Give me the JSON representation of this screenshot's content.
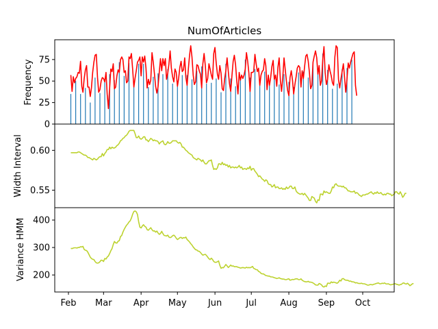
{
  "chart_data": [
    {
      "type": "bar+line",
      "title": "NumOfArticles",
      "ylabel": "Frequency",
      "ylim": [
        0,
        98
      ],
      "yticks": [
        0,
        25,
        50,
        75
      ],
      "colors": {
        "bars": "#1f77b4",
        "line": "#ff0000"
      },
      "x_start": "2016-02-03",
      "series": [
        {
          "kind": "bar",
          "values": [
            35,
            48,
            39,
            52,
            50,
            51,
            60,
            44,
            35,
            41,
            53,
            61,
            42,
            47,
            32,
            37,
            25,
            53,
            73,
            78,
            54,
            46,
            38,
            44,
            36,
            36,
            42,
            46,
            50,
            28,
            17,
            36,
            58,
            58,
            37,
            34,
            51,
            60,
            34,
            55,
            72,
            75,
            78,
            54,
            56,
            44,
            35,
            69,
            71,
            79,
            56,
            40,
            45,
            54,
            64,
            66,
            70,
            51,
            75,
            61,
            70,
            57,
            36,
            47,
            43,
            46,
            72,
            67,
            55,
            39,
            33,
            38,
            59,
            68,
            55,
            60,
            58,
            70,
            49,
            54,
            64,
            78,
            60,
            52,
            47,
            60,
            54,
            40,
            50,
            62,
            67,
            56,
            57,
            70,
            49,
            41,
            57,
            73,
            80,
            71,
            52,
            41,
            45,
            63,
            62,
            55,
            53,
            38,
            67,
            75,
            61,
            42,
            47,
            63,
            57,
            51,
            48,
            74,
            79,
            65,
            53,
            48,
            65,
            54,
            37,
            35,
            49,
            57,
            70,
            56,
            43,
            34,
            53,
            67,
            73,
            63,
            44,
            32,
            55,
            47,
            52,
            48,
            52,
            58,
            75,
            67,
            54,
            35,
            54,
            54,
            55,
            74,
            64,
            56,
            58,
            41,
            52,
            55,
            57,
            70,
            61,
            36,
            52,
            40,
            49,
            61,
            68,
            48,
            52,
            40,
            60,
            70,
            46,
            34,
            49,
            70,
            58,
            45,
            35,
            30,
            49,
            57,
            46,
            31,
            43,
            50,
            59,
            62,
            60,
            39,
            56,
            48,
            61,
            73,
            74,
            67,
            54,
            37,
            41,
            66,
            71,
            78,
            71,
            53,
            62,
            41,
            45,
            67,
            82,
            55,
            42,
            47,
            63,
            56,
            51,
            44,
            41,
            71,
            84,
            81,
            47,
            38,
            47,
            56,
            64,
            49,
            34,
            48,
            65,
            59,
            66,
            70,
            75,
            77,
            41,
            32
          ]
        },
        {
          "kind": "line",
          "values": [
            57,
            38,
            55,
            48,
            53,
            55,
            60,
            59,
            73,
            44,
            37,
            53,
            63,
            68,
            43,
            43,
            32,
            42,
            60,
            72,
            80,
            81,
            54,
            37,
            40,
            50,
            54,
            53,
            49,
            60,
            35,
            18,
            42,
            64,
            61,
            70,
            41,
            43,
            56,
            63,
            60,
            75,
            78,
            75,
            60,
            62,
            48,
            50,
            78,
            76,
            82,
            64,
            43,
            53,
            62,
            72,
            74,
            78,
            56,
            78,
            72,
            79,
            65,
            42,
            52,
            46,
            51,
            83,
            72,
            59,
            44,
            36,
            43,
            60,
            76,
            62,
            76,
            68,
            76,
            52,
            59,
            70,
            85,
            65,
            55,
            49,
            64,
            60,
            44,
            53,
            66,
            73,
            61,
            63,
            77,
            54,
            45,
            64,
            80,
            91,
            78,
            57,
            46,
            49,
            69,
            68,
            62,
            58,
            42,
            70,
            82,
            68,
            48,
            53,
            70,
            64,
            57,
            52,
            82,
            89,
            71,
            58,
            52,
            68,
            59,
            41,
            39,
            53,
            62,
            77,
            61,
            47,
            38,
            56,
            73,
            80,
            69,
            50,
            35,
            60,
            51,
            57,
            53,
            57,
            64,
            83,
            73,
            59,
            38,
            60,
            60,
            61,
            81,
            70,
            61,
            65,
            45,
            57,
            61,
            63,
            76,
            68,
            40,
            57,
            45,
            54,
            67,
            74,
            52,
            57,
            44,
            66,
            77,
            51,
            38,
            54,
            77,
            64,
            50,
            39,
            33,
            54,
            62,
            51,
            35,
            46,
            55,
            65,
            68,
            66,
            43,
            62,
            53,
            67,
            79,
            81,
            73,
            60,
            41,
            45,
            72,
            79,
            85,
            77,
            58,
            68,
            45,
            50,
            75,
            90,
            60,
            46,
            52,
            69,
            62,
            56,
            48,
            45,
            78,
            91,
            89,
            52,
            42,
            52,
            61,
            70,
            54,
            37,
            52,
            71,
            65,
            72,
            77,
            82,
            84,
            45,
            33
          ]
        }
      ]
    },
    {
      "type": "line",
      "title": "",
      "ylabel": "Width Interval",
      "ylim": [
        0.528,
        0.633
      ],
      "yticks": [
        0.55,
        0.6
      ],
      "ytick_labels": [
        "0.55",
        "0.60"
      ],
      "colors": {
        "line": "#bcd22e"
      },
      "x_start": "2016-02-03",
      "values": [
        0.597,
        0.597,
        0.597,
        0.597,
        0.597,
        0.597,
        0.598,
        0.598,
        0.597,
        0.596,
        0.595,
        0.594,
        0.594,
        0.593,
        0.591,
        0.591,
        0.59,
        0.589,
        0.588,
        0.59,
        0.589,
        0.588,
        0.589,
        0.591,
        0.592,
        0.592,
        0.596,
        0.593,
        0.596,
        0.598,
        0.601,
        0.601,
        0.604,
        0.602,
        0.604,
        0.603,
        0.603,
        0.604,
        0.606,
        0.607,
        0.609,
        0.612,
        0.613,
        0.615,
        0.616,
        0.618,
        0.619,
        0.621,
        0.624,
        0.625,
        0.625,
        0.625,
        0.625,
        0.621,
        0.616,
        0.616,
        0.618,
        0.615,
        0.614,
        0.615,
        0.617,
        0.617,
        0.613,
        0.613,
        0.611,
        0.613,
        0.615,
        0.614,
        0.612,
        0.613,
        0.612,
        0.612,
        0.611,
        0.608,
        0.61,
        0.611,
        0.612,
        0.608,
        0.607,
        0.608,
        0.611,
        0.609,
        0.609,
        0.61,
        0.612,
        0.612,
        0.612,
        0.612,
        0.61,
        0.609,
        0.61,
        0.608,
        0.604,
        0.604,
        0.602,
        0.6,
        0.599,
        0.597,
        0.596,
        0.595,
        0.594,
        0.591,
        0.59,
        0.589,
        0.588,
        0.59,
        0.589,
        0.588,
        0.586,
        0.588,
        0.585,
        0.583,
        0.583,
        0.585,
        0.587,
        0.587,
        0.588,
        0.581,
        0.576,
        0.577,
        0.576,
        0.578,
        0.583,
        0.583,
        0.582,
        0.585,
        0.582,
        0.583,
        0.581,
        0.582,
        0.579,
        0.581,
        0.578,
        0.579,
        0.579,
        0.578,
        0.579,
        0.578,
        0.579,
        0.581,
        0.578,
        0.579,
        0.576,
        0.577,
        0.577,
        0.576,
        0.578,
        0.577,
        0.58,
        0.575,
        0.577,
        0.577,
        0.574,
        0.572,
        0.57,
        0.567,
        0.568,
        0.566,
        0.564,
        0.563,
        0.561,
        0.563,
        0.562,
        0.558,
        0.557,
        0.557,
        0.554,
        0.555,
        0.557,
        0.553,
        0.554,
        0.554,
        0.552,
        0.552,
        0.553,
        0.551,
        0.552,
        0.551,
        0.554,
        0.552,
        0.553,
        0.555,
        0.555,
        0.552,
        0.552,
        0.554,
        0.549,
        0.547,
        0.546,
        0.545,
        0.545,
        0.546,
        0.544,
        0.546,
        0.544,
        0.542,
        0.54,
        0.537,
        0.537,
        0.542,
        0.541,
        0.54,
        0.536,
        0.534,
        0.538,
        0.537,
        0.545,
        0.545,
        0.544,
        0.549,
        0.547,
        0.548,
        0.547,
        0.546,
        0.546,
        0.549,
        0.554,
        0.553,
        0.557,
        0.558,
        0.556,
        0.555,
        0.555,
        0.555,
        0.554,
        0.555,
        0.553,
        0.553,
        0.551,
        0.549,
        0.549,
        0.548,
        0.548,
        0.548,
        0.549,
        0.546,
        0.547,
        0.546,
        0.544,
        0.543,
        0.542,
        0.544,
        0.544,
        0.544,
        0.545,
        0.545,
        0.546,
        0.547,
        0.548,
        0.546,
        0.545,
        0.547,
        0.546,
        0.548,
        0.546,
        0.546,
        0.547,
        0.545,
        0.544,
        0.545,
        0.544,
        0.546,
        0.546,
        0.545,
        0.545,
        0.543,
        0.544,
        0.545,
        0.548,
        0.548,
        0.546,
        0.545,
        0.548,
        0.545,
        0.541,
        0.543,
        0.546,
        0.546
      ]
    },
    {
      "type": "line",
      "title": "",
      "ylabel": "Variance HMM",
      "ylim": [
        138,
        445
      ],
      "yticks": [
        200,
        300,
        400
      ],
      "colors": {
        "line": "#bcd22e"
      },
      "x_start": "2016-02-03",
      "x_axis": {
        "ticks": [
          "2016-02-01",
          "2016-03-01",
          "2016-04-01",
          "2016-05-01",
          "2016-06-01",
          "2016-07-01",
          "2016-08-01",
          "2016-09-01",
          "2016-10-01"
        ],
        "tick_labels": [
          "Feb",
          "Mar",
          "Apr",
          "May",
          "Jun",
          "Jul",
          "Aug",
          "Sep",
          "Oct"
        ]
      },
      "values": [
        297,
        296,
        298,
        299,
        299,
        298,
        300,
        300,
        303,
        302,
        304,
        293,
        290,
        289,
        283,
        274,
        265,
        260,
        257,
        256,
        249,
        244,
        243,
        244,
        248,
        254,
        253,
        249,
        260,
        258,
        265,
        269,
        278,
        288,
        296,
        311,
        322,
        317,
        316,
        323,
        325,
        340,
        344,
        356,
        366,
        374,
        381,
        386,
        393,
        397,
        407,
        421,
        431,
        433,
        430,
        420,
        394,
        374,
        371,
        378,
        383,
        377,
        374,
        365,
        363,
        368,
        372,
        365,
        360,
        361,
        356,
        360,
        353,
        348,
        351,
        359,
        351,
        344,
        343,
        342,
        345,
        338,
        336,
        338,
        343,
        345,
        341,
        334,
        329,
        332,
        336,
        337,
        333,
        336,
        335,
        338,
        329,
        325,
        320,
        314,
        309,
        302,
        297,
        292,
        291,
        287,
        286,
        282,
        276,
        272,
        274,
        275,
        271,
        265,
        259,
        256,
        261,
        256,
        249,
        246,
        246,
        248,
        251,
        235,
        224,
        227,
        226,
        232,
        238,
        233,
        227,
        231,
        236,
        232,
        233,
        230,
        230,
        230,
        228,
        227,
        225,
        226,
        227,
        226,
        225,
        228,
        226,
        227,
        226,
        228,
        231,
        224,
        222,
        219,
        219,
        213,
        211,
        206,
        204,
        204,
        201,
        198,
        197,
        196,
        196,
        193,
        193,
        192,
        190,
        189,
        187,
        188,
        190,
        187,
        186,
        185,
        185,
        183,
        183,
        185,
        186,
        181,
        182,
        184,
        183,
        185,
        186,
        186,
        183,
        183,
        186,
        181,
        178,
        176,
        175,
        175,
        177,
        174,
        174,
        173,
        171,
        168,
        164,
        163,
        163,
        169,
        167,
        164,
        158,
        156,
        160,
        158,
        170,
        170,
        169,
        175,
        172,
        174,
        173,
        171,
        170,
        174,
        181,
        178,
        186,
        187,
        183,
        181,
        181,
        180,
        177,
        178,
        175,
        175,
        174,
        171,
        172,
        170,
        169,
        169,
        170,
        168,
        168,
        167,
        165,
        163,
        163,
        165,
        165,
        164,
        166,
        167,
        169,
        170,
        171,
        168,
        168,
        170,
        169,
        171,
        168,
        167,
        168,
        166,
        164,
        165,
        166,
        168,
        168,
        166,
        165,
        163,
        165,
        166,
        170,
        171,
        168,
        167,
        170,
        166,
        161,
        164,
        168,
        169
      ]
    }
  ]
}
